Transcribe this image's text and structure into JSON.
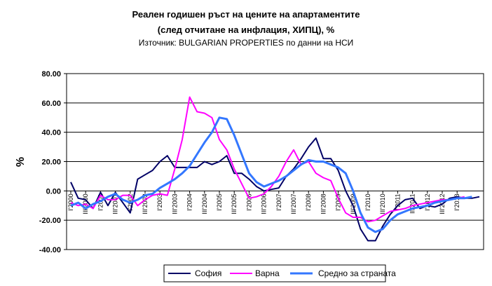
{
  "chart_data": {
    "type": "line",
    "title": "Реален годишен ръст на цените на апартаментите",
    "subtitle": "(след отчитане на инфлация, ХИПЦ), %",
    "source_note": "Източник: BULGARIAN PROPERTIES по данни на НСИ",
    "xlabel": "",
    "ylabel": "%",
    "ylim": [
      -40,
      80
    ],
    "yticks": [
      "80.00",
      "60.00",
      "40.00",
      "20.00",
      "0.00",
      "-20.00",
      "-40.00"
    ],
    "grid": true,
    "legend_position": "bottom",
    "x_tick_labels": [
      "I'2000",
      "III'2000",
      "I'2001",
      "III'2001",
      "I'2002",
      "III'2002",
      "I'2003",
      "III'2003",
      "I'2004",
      "III'2004",
      "I'2005",
      "III'2005",
      "I'2006",
      "III'2006",
      "I'2007",
      "III'2007",
      "I'2008",
      "III'2008",
      "I'2009",
      "III'2009",
      "I'2010",
      "III'2010",
      "I'2011",
      "III'2011",
      "I'2012",
      "III'2012",
      "I'2013"
    ],
    "series": [
      {
        "name": "София",
        "color": "#000066",
        "values": [
          6,
          -5,
          -6,
          -12,
          -1,
          -10,
          -1,
          -8,
          -15,
          8,
          11,
          14,
          20,
          24,
          16,
          16,
          16,
          16,
          20,
          18,
          20,
          24,
          12,
          12,
          8,
          3,
          0,
          1,
          2,
          10,
          15,
          22,
          30,
          36,
          22,
          22,
          14,
          0,
          -10,
          -26,
          -34,
          -34,
          -24,
          -16,
          -10,
          -6,
          -5,
          -12,
          -10,
          -11,
          -9,
          -5,
          -4,
          -5,
          -5,
          -4
        ]
      },
      {
        "name": "Варна",
        "color": "#ff00ff",
        "values": [
          -8,
          -10,
          -9,
          -12,
          -3,
          -6,
          -6,
          -3,
          -3,
          -10,
          -6,
          -3,
          -2,
          -3,
          15,
          35,
          64,
          54,
          53,
          50,
          35,
          28,
          15,
          5,
          -5,
          -4,
          -2,
          3,
          10,
          20,
          28,
          18,
          20,
          12,
          9,
          7,
          -5,
          -15,
          -18,
          -18,
          -21,
          -20,
          -17,
          -14,
          -13,
          -12,
          -10,
          -9,
          -8,
          -7,
          -6,
          -6,
          -5,
          -4
        ]
      },
      {
        "name": "Средно за страната",
        "color": "#3377ff",
        "values": [
          -10,
          -8,
          -12,
          -9,
          -7,
          -4,
          -2,
          -6,
          -8,
          -6,
          -3,
          -2,
          2,
          5,
          8,
          12,
          17,
          25,
          33,
          40,
          50,
          49,
          38,
          25,
          12,
          6,
          3,
          5,
          7,
          10,
          14,
          18,
          21,
          20,
          20,
          18,
          16,
          12,
          0,
          -15,
          -25,
          -28,
          -26,
          -20,
          -16,
          -14,
          -12,
          -11,
          -10,
          -8,
          -7,
          -6,
          -5,
          -5,
          -4
        ]
      }
    ]
  }
}
